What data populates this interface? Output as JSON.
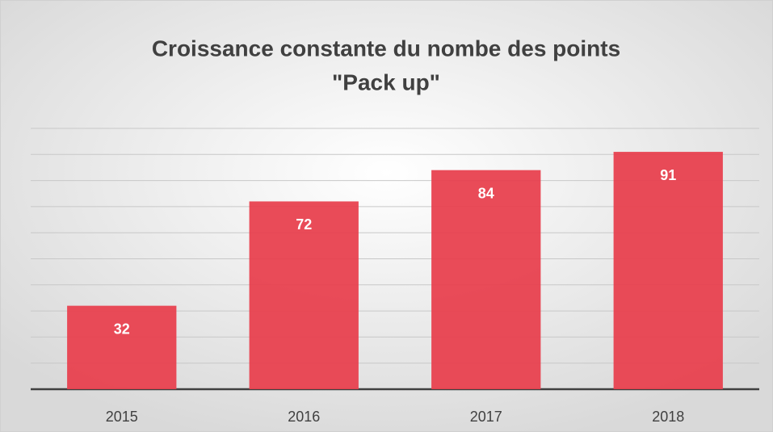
{
  "chart_data": {
    "type": "bar",
    "title": [
      "Croissance constante du nombe des points",
      "\"Pack up\""
    ],
    "categories": [
      "2015",
      "2016",
      "2017",
      "2018"
    ],
    "values": [
      32,
      72,
      84,
      91
    ],
    "color": "#e8414f",
    "ylim": [
      0,
      100
    ],
    "yticks": [
      0,
      10,
      20,
      30,
      40,
      50,
      60,
      70,
      80,
      90,
      100
    ],
    "grid": true
  }
}
